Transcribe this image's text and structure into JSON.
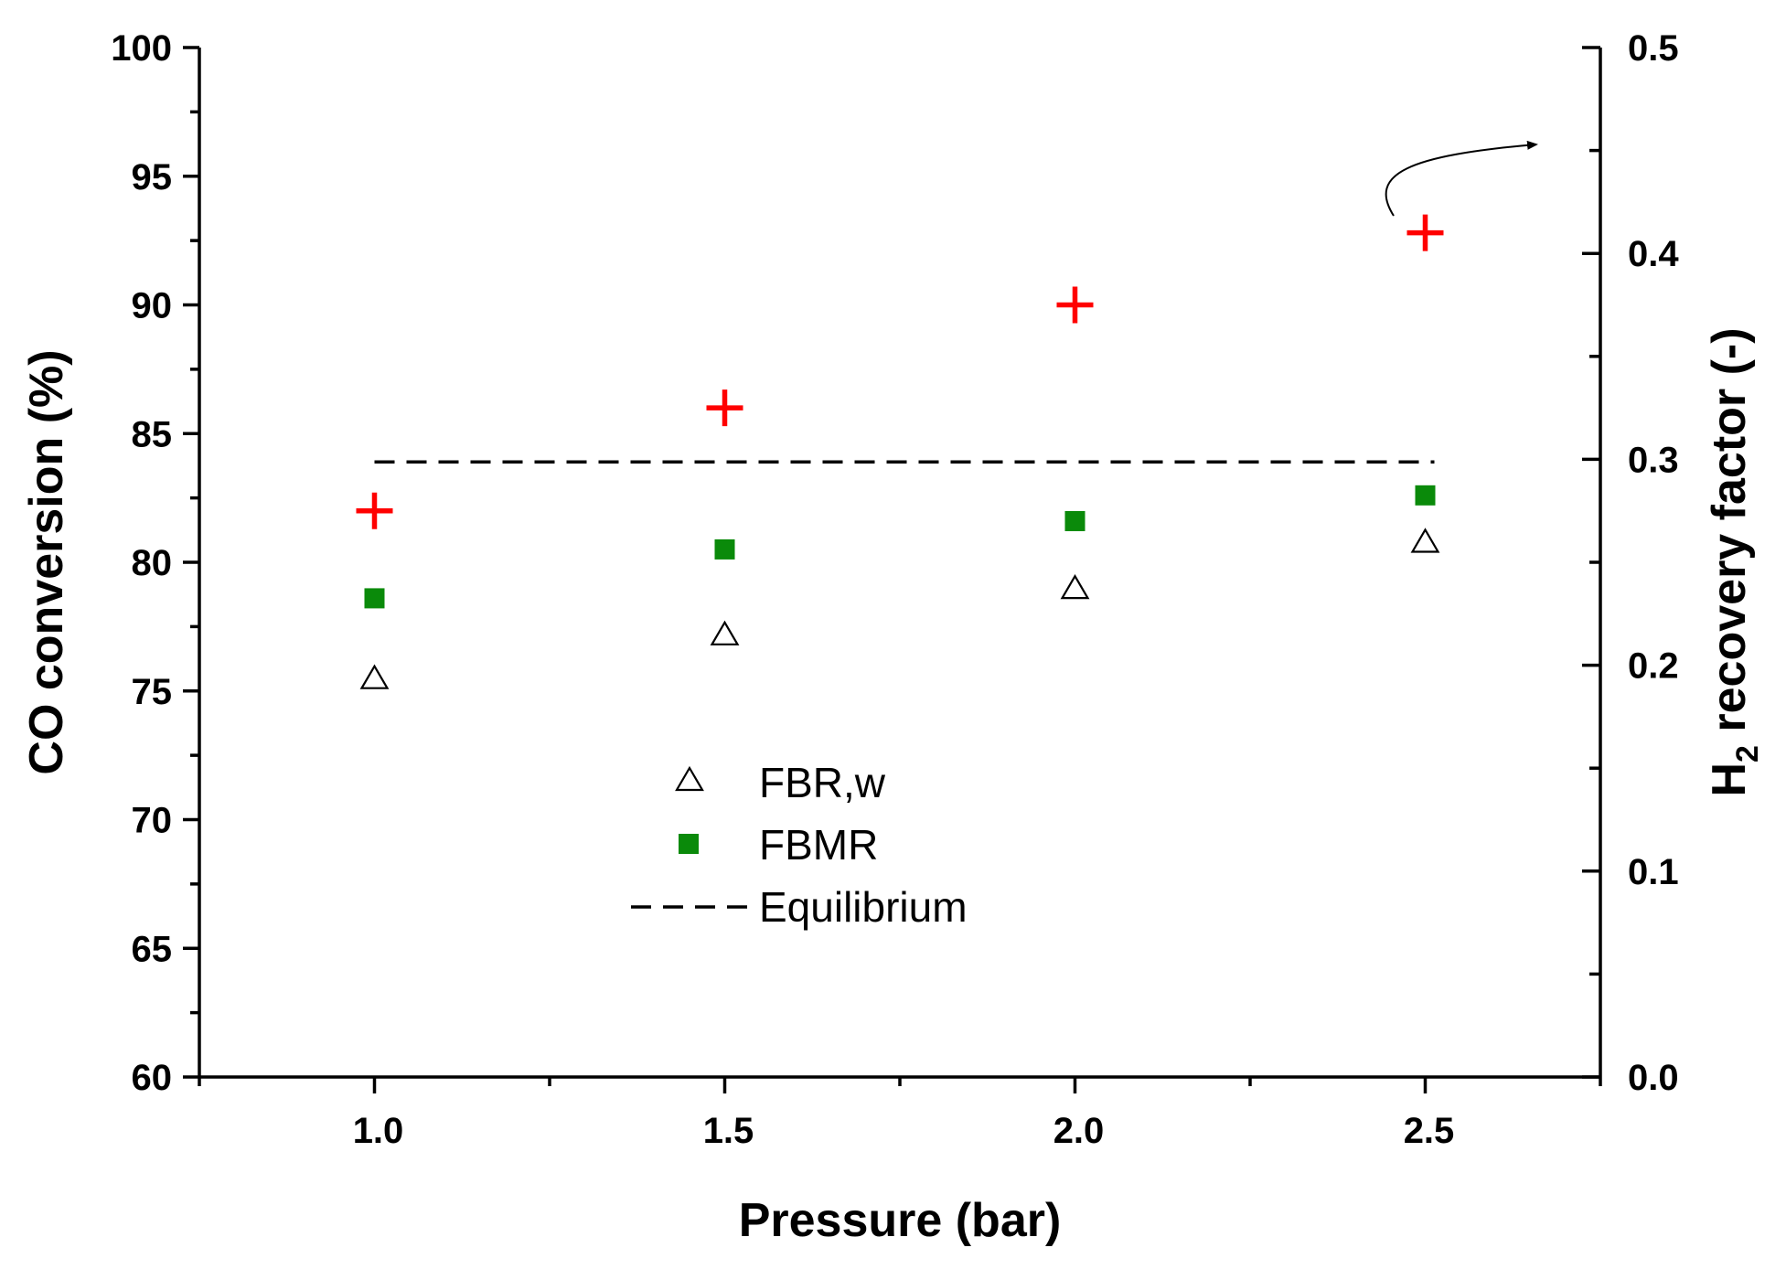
{
  "chart_data": {
    "type": "scatter",
    "xlabel": "Pressure (bar)",
    "ylabel": "CO conversion (%)",
    "y2label_main": "H",
    "y2label_sub": "2",
    "y2label_rest": " recovery factor (-)",
    "xlim": [
      0.75,
      2.75
    ],
    "ylim": [
      60,
      100
    ],
    "y2lim": [
      0.0,
      0.5
    ],
    "x_ticks": [
      "1.0",
      "1.5",
      "2.0",
      "2.5"
    ],
    "x_tick_values": [
      1.0,
      1.5,
      2.0,
      2.5
    ],
    "y_ticks": [
      "60",
      "65",
      "70",
      "75",
      "80",
      "85",
      "90",
      "95",
      "100"
    ],
    "y_tick_values": [
      60,
      65,
      70,
      75,
      80,
      85,
      90,
      95,
      100
    ],
    "y2_ticks": [
      "0.0",
      "0.1",
      "0.2",
      "0.3",
      "0.4",
      "0.5"
    ],
    "y2_tick_values": [
      0.0,
      0.1,
      0.2,
      0.3,
      0.4,
      0.5
    ],
    "series": [
      {
        "name": "FBR,w",
        "marker": "open-triangle",
        "axis": "left",
        "color": "#000000",
        "x": [
          1.0,
          1.5,
          2.0,
          2.5
        ],
        "values": [
          75.5,
          77.2,
          79.0,
          80.8
        ]
      },
      {
        "name": "FBMR",
        "marker": "filled-square",
        "axis": "left",
        "color": "#0a8a0a",
        "x": [
          1.0,
          1.5,
          2.0,
          2.5
        ],
        "values": [
          78.6,
          80.5,
          81.6,
          82.6
        ]
      },
      {
        "name": "Equilibrium",
        "marker": "dashed-line",
        "axis": "left",
        "color": "#000000",
        "x": [
          1.0,
          2.5
        ],
        "values": [
          83.9,
          83.9
        ]
      },
      {
        "name": "H2 recovery factor",
        "marker": "plus",
        "axis": "right",
        "color": "#ff0000",
        "x": [
          1.0,
          1.5,
          2.0,
          2.5
        ],
        "values": [
          0.275,
          0.325,
          0.375,
          0.41
        ]
      }
    ],
    "legend": {
      "placement": "bottom-center",
      "entries": [
        "FBR,w",
        "FBMR",
        "Equilibrium"
      ]
    },
    "annotation": "curved arrow pointing to right axis"
  }
}
